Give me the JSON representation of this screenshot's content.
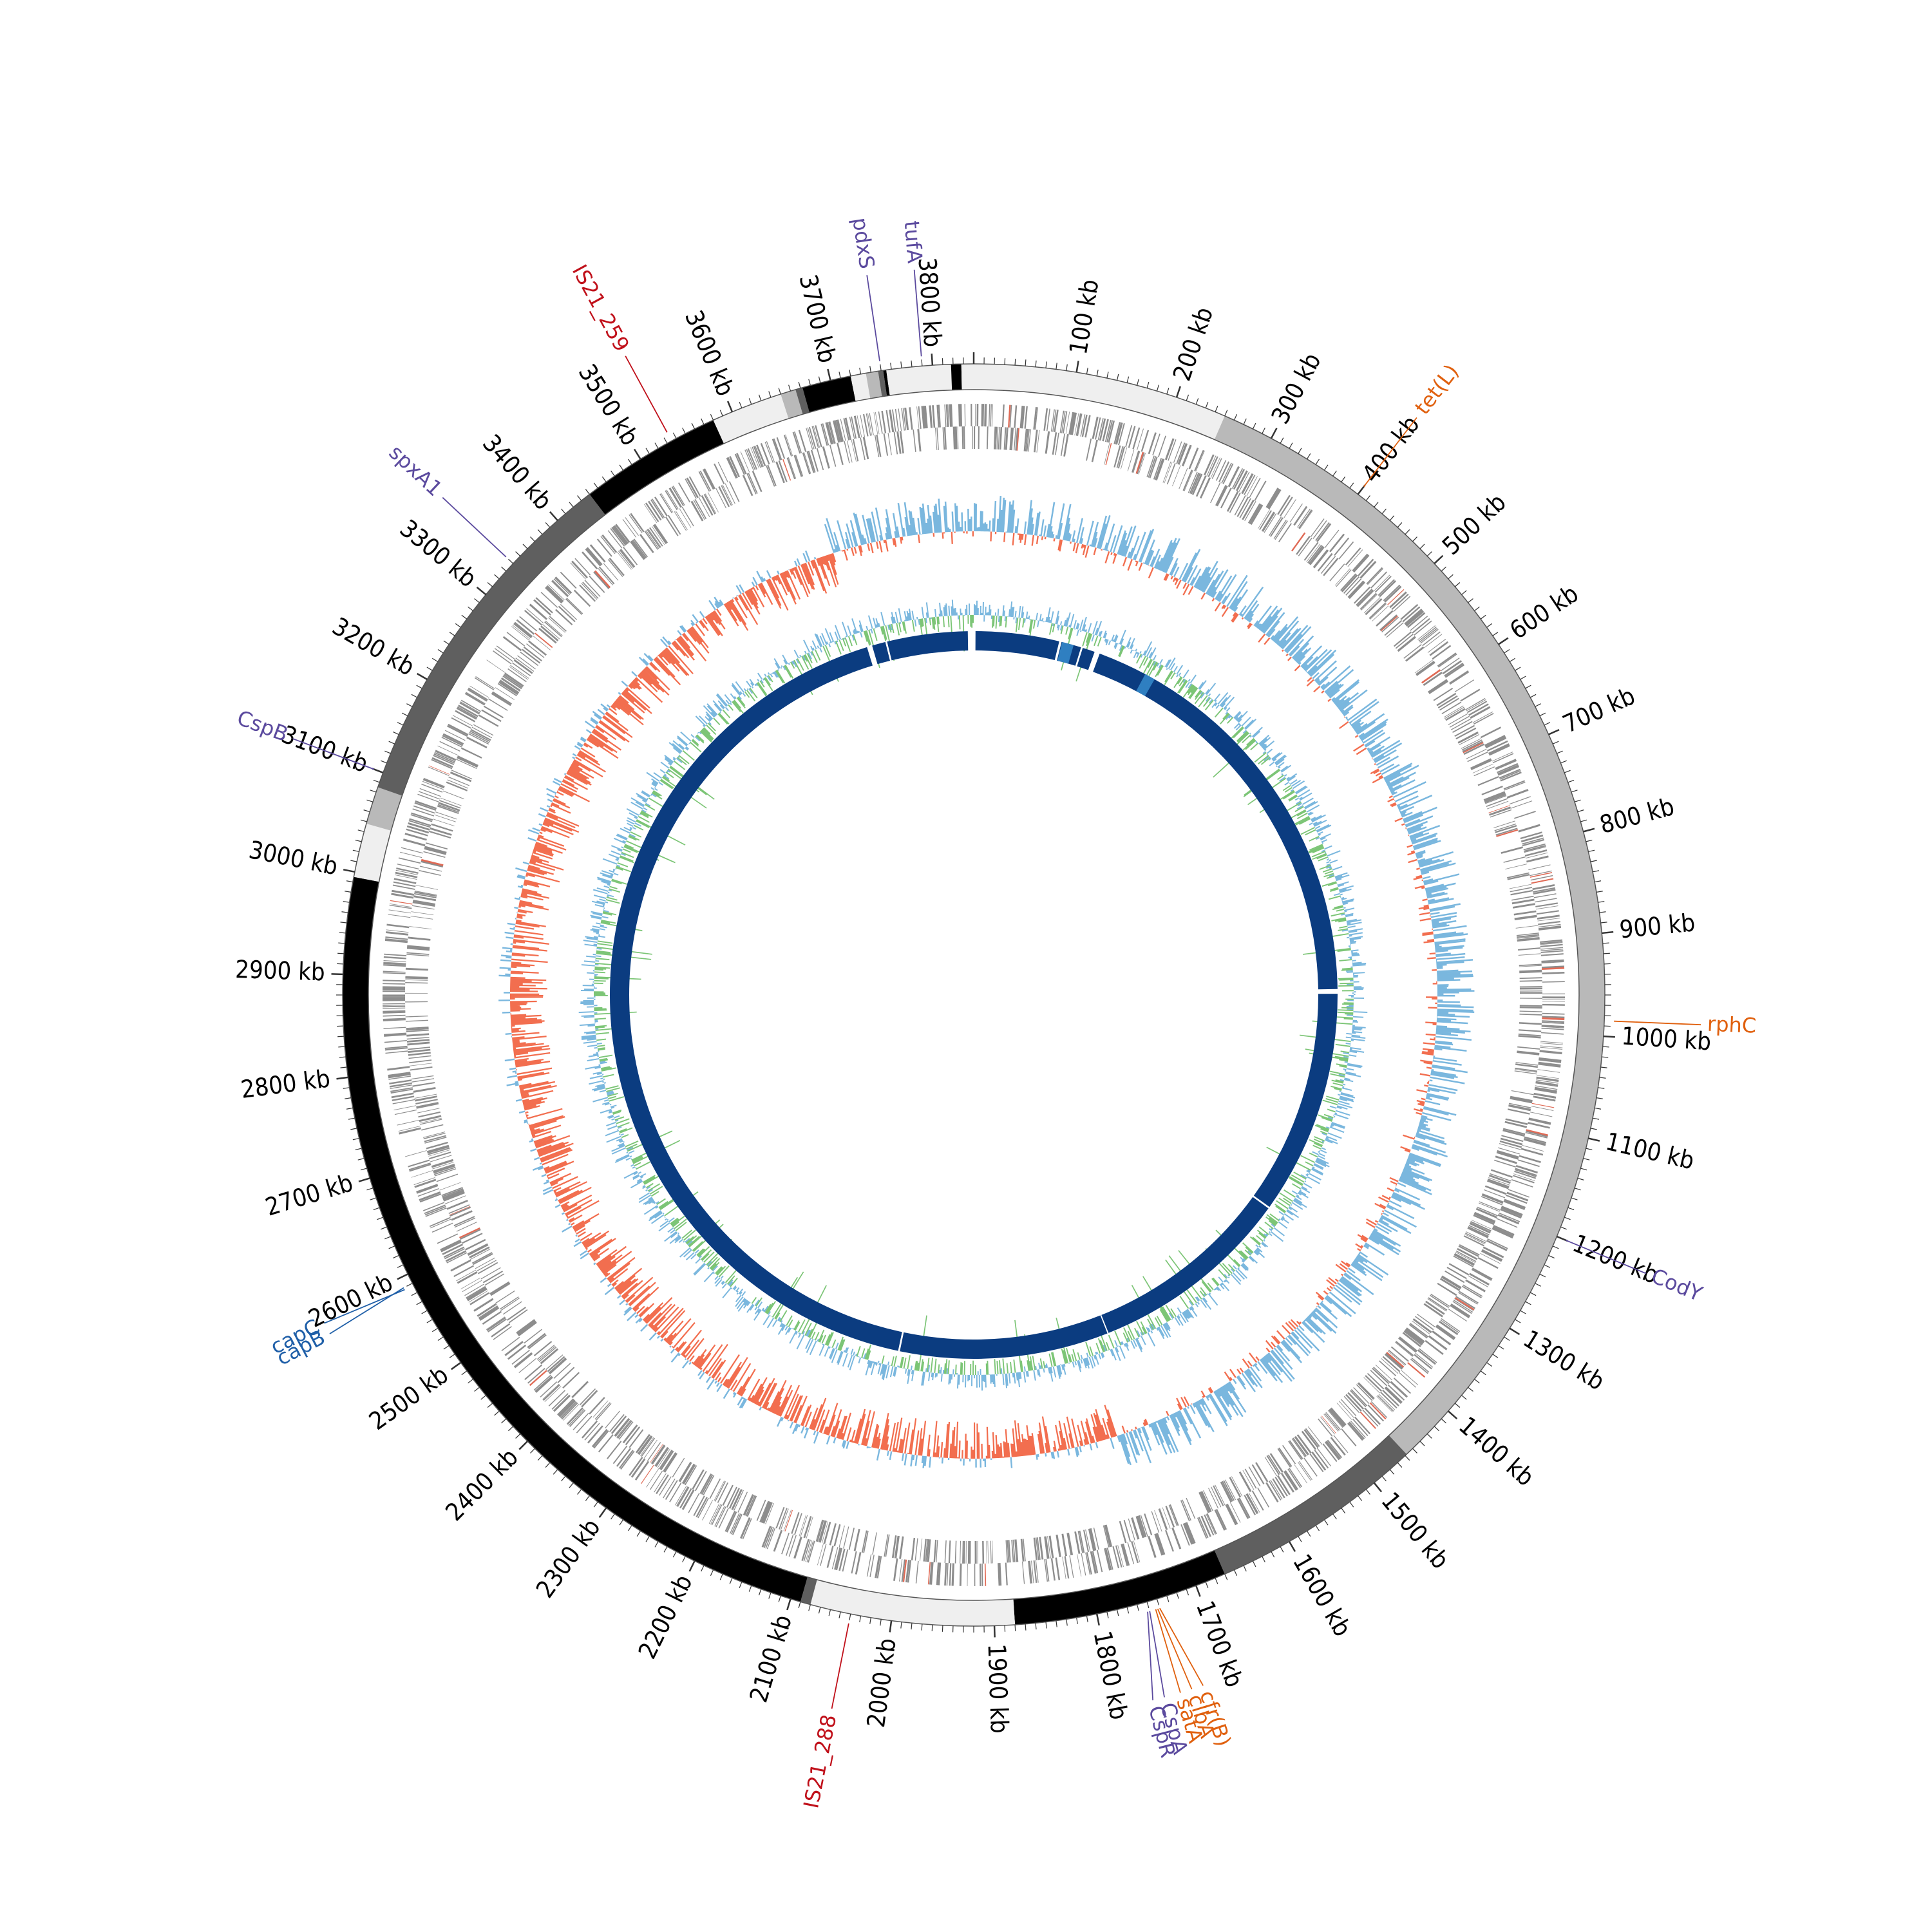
{
  "genome": {
    "total_kb": 3840,
    "tick_unit": "kb"
  },
  "scale_ticks": [
    {
      "label": "100 kb",
      "pos": 100
    },
    {
      "label": "200 kb",
      "pos": 200
    },
    {
      "label": "300 kb",
      "pos": 300
    },
    {
      "label": "400 kb",
      "pos": 400
    },
    {
      "label": "500 kb",
      "pos": 500
    },
    {
      "label": "600 kb",
      "pos": 600
    },
    {
      "label": "700 kb",
      "pos": 700
    },
    {
      "label": "800 kb",
      "pos": 800
    },
    {
      "label": "900 kb",
      "pos": 900
    },
    {
      "label": "1000 kb",
      "pos": 1000
    },
    {
      "label": "1100 kb",
      "pos": 1100
    },
    {
      "label": "1200 kb",
      "pos": 1200
    },
    {
      "label": "1300 kb",
      "pos": 1300
    },
    {
      "label": "1400 kb",
      "pos": 1400
    },
    {
      "label": "1500 kb",
      "pos": 1500
    },
    {
      "label": "1600 kb",
      "pos": 1600
    },
    {
      "label": "1700 kb",
      "pos": 1700
    },
    {
      "label": "1800 kb",
      "pos": 1800
    },
    {
      "label": "1900 kb",
      "pos": 1900
    },
    {
      "label": "2000 kb",
      "pos": 2000
    },
    {
      "label": "2100 kb",
      "pos": 2100
    },
    {
      "label": "2200 kb",
      "pos": 2200
    },
    {
      "label": "2300 kb",
      "pos": 2300
    },
    {
      "label": "2400 kb",
      "pos": 2400
    },
    {
      "label": "2500 kb",
      "pos": 2500
    },
    {
      "label": "2600 kb",
      "pos": 2600
    },
    {
      "label": "2700 kb",
      "pos": 2700
    },
    {
      "label": "2800 kb",
      "pos": 2800
    },
    {
      "label": "2900 kb",
      "pos": 2900
    },
    {
      "label": "3000 kb",
      "pos": 3000
    },
    {
      "label": "3100 kb",
      "pos": 3100
    },
    {
      "label": "3200 kb",
      "pos": 3200
    },
    {
      "label": "3300 kb",
      "pos": 3300
    },
    {
      "label": "3400 kb",
      "pos": 3400
    },
    {
      "label": "3500 kb",
      "pos": 3500
    },
    {
      "label": "3600 kb",
      "pos": 3600
    },
    {
      "label": "3700 kb",
      "pos": 3700
    },
    {
      "label": "3800 kb",
      "pos": 3800
    }
  ],
  "contigs": [
    {
      "start": 0,
      "end": 250,
      "color": "#efefef"
    },
    {
      "start": 250,
      "end": 1458,
      "color": "#b9b9b9"
    },
    {
      "start": 1458,
      "end": 1670,
      "color": "#5f5f5f"
    },
    {
      "start": 1670,
      "end": 1880,
      "color": "#000000"
    },
    {
      "start": 1880,
      "end": 2080,
      "color": "#efefef"
    },
    {
      "start": 2080,
      "end": 2090,
      "color": "#5f5f5f"
    },
    {
      "start": 2090,
      "end": 2995,
      "color": "#000000"
    },
    {
      "start": 2995,
      "end": 3048,
      "color": "#efefef"
    },
    {
      "start": 3048,
      "end": 3085,
      "color": "#b9b9b9"
    },
    {
      "start": 3085,
      "end": 3440,
      "color": "#5f5f5f"
    },
    {
      "start": 3440,
      "end": 3580,
      "color": "#000000"
    },
    {
      "start": 3580,
      "end": 3650,
      "color": "#efefef"
    },
    {
      "start": 3650,
      "end": 3665,
      "color": "#b9b9b9"
    },
    {
      "start": 3665,
      "end": 3672,
      "color": "#5f5f5f"
    },
    {
      "start": 3672,
      "end": 3720,
      "color": "#000000"
    },
    {
      "start": 3720,
      "end": 3735,
      "color": "#efefef"
    },
    {
      "start": 3735,
      "end": 3747,
      "color": "#b9b9b9"
    },
    {
      "start": 3747,
      "end": 3752,
      "color": "#5f5f5f"
    },
    {
      "start": 3752,
      "end": 3755,
      "color": "#000000"
    },
    {
      "start": 3755,
      "end": 3818,
      "color": "#efefef"
    },
    {
      "start": 3818,
      "end": 3828,
      "color": "#000000"
    },
    {
      "start": 3828,
      "end": 3840,
      "color": "#efefef"
    }
  ],
  "gene_labels": [
    {
      "text": "tufA",
      "pos": 3790,
      "color": "#5b4a9e"
    },
    {
      "text": "pdxS",
      "pos": 3750,
      "color": "#5b4a9e"
    },
    {
      "text": "IS21_259",
      "pos": 3535,
      "color": "#c0101a"
    },
    {
      "text": "spxA1",
      "pos": 3340,
      "color": "#5b4a9e"
    },
    {
      "text": "CspB",
      "pos": 3100,
      "color": "#5b4a9e"
    },
    {
      "text": "capB",
      "pos": 2590,
      "color": "#1f5fa8"
    },
    {
      "text": "capC",
      "pos": 2588,
      "color": "#1f5fa8"
    },
    {
      "text": "IS21_288",
      "pos": 2040,
      "color": "#c0101a"
    },
    {
      "text": "CspR",
      "pos": 1752,
      "color": "#5b4a9e"
    },
    {
      "text": "CspA",
      "pos": 1750,
      "color": "#5b4a9e"
    },
    {
      "text": "satA",
      "pos": 1744,
      "color": "#e0600e"
    },
    {
      "text": "clbA",
      "pos": 1742,
      "color": "#e0600e"
    },
    {
      "text": "cfr(B)",
      "pos": 1740,
      "color": "#e0600e"
    },
    {
      "text": "CodY",
      "pos": 1200,
      "color": "#5b4a9e"
    },
    {
      "text": "rphC",
      "pos": 985,
      "color": "#e0600e"
    },
    {
      "text": "tet(L)",
      "pos": 400,
      "color": "#e0600e"
    }
  ],
  "colors": {
    "gene_track": "#8d8d8d",
    "gc_skew_positive": "#7ab7de",
    "gc_skew_negative": "#f26e4f",
    "gc_content": "#7cc576",
    "blast_ring": "#0b3c80",
    "blast_ring_light": "#2f7fc1",
    "ring_outline": "#555555"
  }
}
